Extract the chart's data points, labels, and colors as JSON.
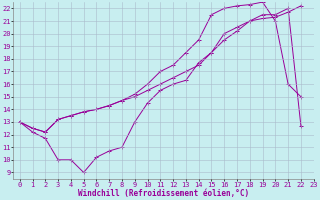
{
  "xlabel": "Windchill (Refroidissement éolien,°C)",
  "xlim": [
    -0.5,
    23
  ],
  "ylim": [
    8.5,
    22.5
  ],
  "yticks": [
    9,
    10,
    11,
    12,
    13,
    14,
    15,
    16,
    17,
    18,
    19,
    20,
    21,
    22
  ],
  "xticks": [
    0,
    1,
    2,
    3,
    4,
    5,
    6,
    7,
    8,
    9,
    10,
    11,
    12,
    13,
    14,
    15,
    16,
    17,
    18,
    19,
    20,
    21,
    22,
    23
  ],
  "line_color": "#990099",
  "bg_color": "#c8eef0",
  "line1_x": [
    0,
    1,
    2,
    3,
    4,
    5,
    6,
    7,
    8,
    9,
    10,
    11,
    12,
    13,
    14,
    15,
    16,
    17,
    18,
    19,
    20,
    21,
    22
  ],
  "line1_y": [
    13,
    12.2,
    11.7,
    10.0,
    10.0,
    9.0,
    10.2,
    10.7,
    11.0,
    13.0,
    14.5,
    15.5,
    16.0,
    16.3,
    17.7,
    18.5,
    20.0,
    20.5,
    21.0,
    21.5,
    21.5,
    22.0,
    12.7
  ],
  "line2_x": [
    0,
    1,
    2,
    3,
    4,
    5,
    6,
    7,
    8,
    9,
    10,
    11,
    12,
    13,
    14,
    15,
    16,
    17,
    18,
    19,
    20,
    21,
    22
  ],
  "line2_y": [
    13,
    12.5,
    12.2,
    13.2,
    13.5,
    13.8,
    14.0,
    14.3,
    14.7,
    15.0,
    15.5,
    16.0,
    16.5,
    17.0,
    17.5,
    18.5,
    19.5,
    20.2,
    21.0,
    21.2,
    21.3,
    21.7,
    22.2
  ],
  "line3_x": [
    0,
    1,
    2,
    3,
    4,
    5,
    6,
    7,
    8,
    9,
    10,
    11,
    12,
    13,
    14,
    15,
    16,
    17,
    18,
    19,
    20,
    21,
    22
  ],
  "line3_y": [
    13,
    12.5,
    12.2,
    13.2,
    13.5,
    13.8,
    14.0,
    14.3,
    14.7,
    15.2,
    16.0,
    17.0,
    17.5,
    18.5,
    19.5,
    21.5,
    22.0,
    22.2,
    22.3,
    22.5,
    21.0,
    16.0,
    15.0
  ],
  "tick_fontsize": 5,
  "xlabel_fontsize": 5.5,
  "grid_color": "#aabbcc",
  "grid_lw": 0.4
}
